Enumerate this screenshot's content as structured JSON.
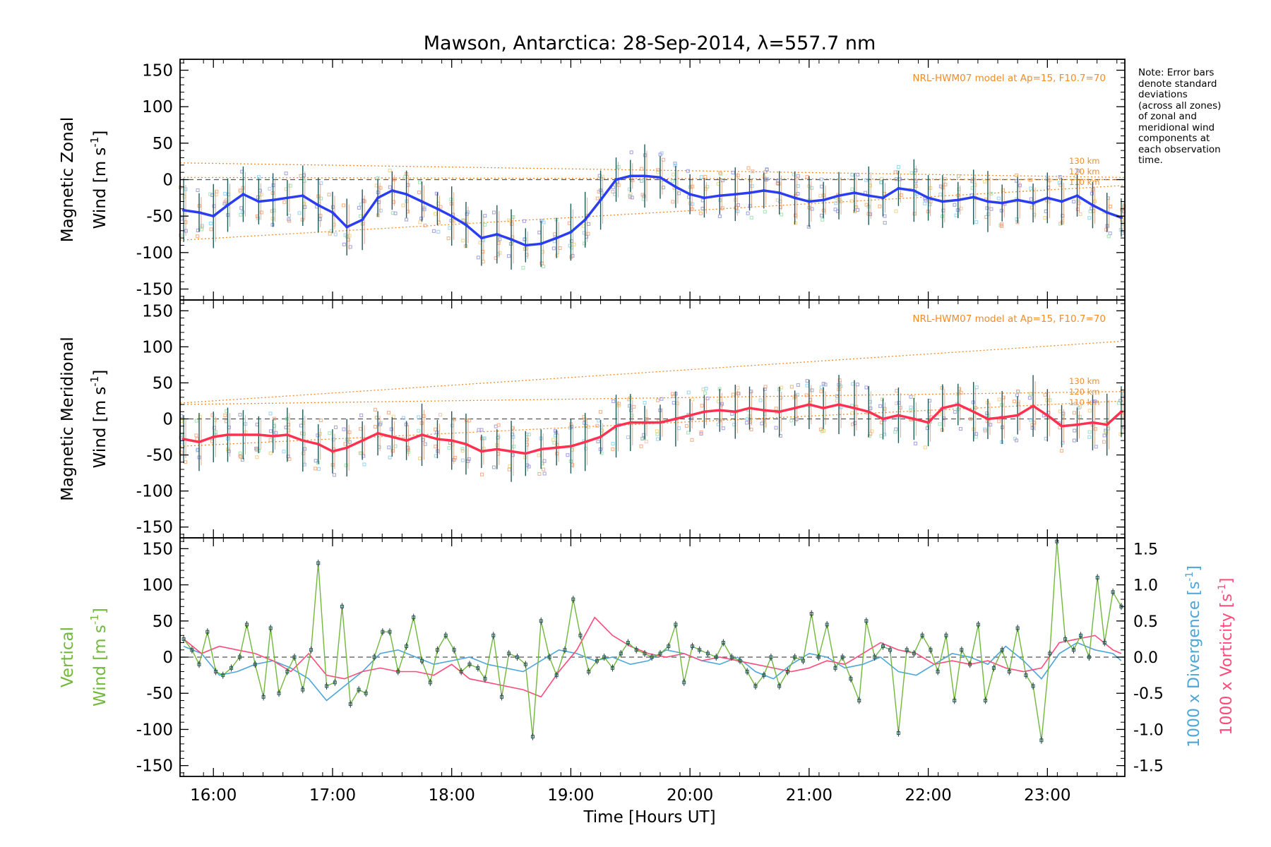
{
  "title": "Mawson, Antarctica: 28-Sep-2014, λ=557.7 nm",
  "note": "Note: Error bars\ndenote standard\ndeviations\n(across all zones)\nof zonal and\nmeridional wind\ncomponents at\neach observation\ntime.",
  "xlabel": "Time [Hours UT]",
  "x_ticks": [
    "16:00",
    "17:00",
    "18:00",
    "19:00",
    "20:00",
    "21:00",
    "22:00",
    "23:00"
  ],
  "colors": {
    "zonal": "#2b3df0",
    "meridional": "#ff3050",
    "vertical": "#72b83c",
    "divergence": "#4da6d8",
    "vorticity": "#ff4a7a",
    "model": "#f28c28",
    "zone_points": "#9999dd"
  },
  "chart_data": [
    {
      "type": "line",
      "name": "zonal",
      "ylabel_line1": "Magnetic Zonal",
      "ylabel_line2": "Wind [m s",
      "ylabel_sup": "-1",
      "ylabel_end": "]",
      "ylim": [
        -165,
        165
      ],
      "yticks": [
        -150,
        -100,
        -50,
        0,
        50,
        100,
        150
      ],
      "xlim": [
        15.72,
        23.65
      ],
      "model_label": "NRL-HWM07 model at Ap=15, F10.7=70",
      "model_levels": [
        "130 km",
        "120 km",
        "110 km"
      ],
      "model_lines": [
        {
          "name": "130 km",
          "start": 23,
          "end": 3
        },
        {
          "name": "120 km",
          "start": 3,
          "end": 0
        },
        {
          "name": "110 km",
          "start": -83,
          "end": -8
        }
      ],
      "x": [
        15.75,
        15.88,
        16.0,
        16.12,
        16.25,
        16.38,
        16.5,
        16.62,
        16.75,
        16.88,
        17.0,
        17.12,
        17.25,
        17.38,
        17.5,
        17.62,
        17.75,
        17.88,
        18.0,
        18.12,
        18.25,
        18.38,
        18.5,
        18.62,
        18.75,
        18.88,
        19.0,
        19.12,
        19.25,
        19.38,
        19.5,
        19.62,
        19.75,
        19.88,
        20.0,
        20.12,
        20.25,
        20.38,
        20.5,
        20.62,
        20.75,
        20.88,
        21.0,
        21.12,
        21.25,
        21.38,
        21.5,
        21.62,
        21.75,
        21.88,
        22.0,
        22.12,
        22.25,
        22.38,
        22.5,
        22.62,
        22.75,
        22.88,
        23.0,
        23.12,
        23.25,
        23.38,
        23.5,
        23.62
      ],
      "values": [
        -42,
        -45,
        -50,
        -35,
        -20,
        -30,
        -28,
        -25,
        -22,
        -35,
        -45,
        -65,
        -55,
        -25,
        -15,
        -20,
        -30,
        -40,
        -50,
        -62,
        -80,
        -75,
        -82,
        -90,
        -88,
        -80,
        -72,
        -55,
        -28,
        0,
        5,
        5,
        3,
        -10,
        -20,
        -25,
        -22,
        -20,
        -18,
        -15,
        -18,
        -25,
        -30,
        -28,
        -22,
        -18,
        -22,
        -25,
        -12,
        -15,
        -25,
        -30,
        -28,
        -24,
        -30,
        -32,
        -28,
        -32,
        -25,
        -30,
        -22,
        -35,
        -45,
        -52
      ]
    },
    {
      "type": "line",
      "name": "meridional",
      "ylabel_line1": "Magnetic Meridional",
      "ylabel_line2": "Wind [m s",
      "ylabel_sup": "-1",
      "ylabel_end": "]",
      "ylim": [
        -165,
        165
      ],
      "yticks": [
        -150,
        -100,
        -50,
        0,
        50,
        100,
        150
      ],
      "xlim": [
        15.72,
        23.65
      ],
      "model_label": "NRL-HWM07 model at Ap=15, F10.7=70",
      "model_levels": [
        "130 km",
        "120 km",
        "110 km"
      ],
      "model_lines": [
        {
          "name": "130 km",
          "start": 22,
          "end": 108
        },
        {
          "name": "120 km",
          "start": 20,
          "end": 38
        },
        {
          "name": "110 km",
          "start": -38,
          "end": 25
        }
      ],
      "x": [
        15.75,
        15.88,
        16.0,
        16.12,
        16.25,
        16.38,
        16.5,
        16.62,
        16.75,
        16.88,
        17.0,
        17.12,
        17.25,
        17.38,
        17.5,
        17.62,
        17.75,
        17.88,
        18.0,
        18.12,
        18.25,
        18.38,
        18.5,
        18.62,
        18.75,
        18.88,
        19.0,
        19.12,
        19.25,
        19.38,
        19.5,
        19.62,
        19.75,
        19.88,
        20.0,
        20.12,
        20.25,
        20.38,
        20.5,
        20.62,
        20.75,
        20.88,
        21.0,
        21.12,
        21.25,
        21.38,
        21.5,
        21.62,
        21.75,
        21.88,
        22.0,
        22.12,
        22.25,
        22.38,
        22.5,
        22.62,
        22.75,
        22.88,
        23.0,
        23.12,
        23.25,
        23.38,
        23.5,
        23.62
      ],
      "values": [
        -28,
        -32,
        -25,
        -22,
        -22,
        -22,
        -24,
        -22,
        -30,
        -35,
        -45,
        -40,
        -30,
        -20,
        -25,
        -30,
        -22,
        -28,
        -30,
        -35,
        -45,
        -42,
        -45,
        -48,
        -42,
        -40,
        -38,
        -32,
        -25,
        -10,
        -5,
        -5,
        -5,
        0,
        5,
        10,
        12,
        10,
        15,
        12,
        10,
        15,
        20,
        15,
        20,
        15,
        10,
        0,
        5,
        0,
        -5,
        15,
        20,
        10,
        0,
        2,
        5,
        18,
        5,
        -10,
        -8,
        -5,
        -8,
        10
      ]
    },
    {
      "type": "line",
      "name": "vertical",
      "ylabel_line1": "Vertical",
      "ylabel_line2": "Wind [m s",
      "ylabel_sup": "-1",
      "ylabel_end": "]",
      "ylim": [
        -165,
        165
      ],
      "yticks": [
        -150,
        -100,
        -50,
        0,
        50,
        100,
        150
      ],
      "xlim": [
        15.72,
        23.65
      ],
      "right_axis": {
        "ylim": [
          -1.65,
          1.65
        ],
        "yticks": [
          -1.5,
          -1.0,
          -0.5,
          0.0,
          0.5,
          1.0,
          1.5
        ],
        "label_divergence": "1000 x Divergence [s",
        "label_vorticity": "1000 x Vorticity [s",
        "label_sup": "-1",
        "label_end": "]"
      },
      "x": [
        15.75,
        15.82,
        15.88,
        15.95,
        16.02,
        16.08,
        16.15,
        16.22,
        16.28,
        16.35,
        16.42,
        16.48,
        16.55,
        16.62,
        16.68,
        16.75,
        16.82,
        16.88,
        16.95,
        17.02,
        17.08,
        17.15,
        17.22,
        17.28,
        17.35,
        17.42,
        17.48,
        17.55,
        17.62,
        17.68,
        17.75,
        17.82,
        17.88,
        17.95,
        18.02,
        18.08,
        18.15,
        18.22,
        18.28,
        18.35,
        18.42,
        18.48,
        18.55,
        18.62,
        18.68,
        18.75,
        18.82,
        18.88,
        18.95,
        19.02,
        19.08,
        19.15,
        19.22,
        19.28,
        19.35,
        19.42,
        19.48,
        19.55,
        19.62,
        19.68,
        19.75,
        19.82,
        19.88,
        19.95,
        20.02,
        20.08,
        20.15,
        20.22,
        20.28,
        20.35,
        20.42,
        20.48,
        20.55,
        20.62,
        20.68,
        20.75,
        20.82,
        20.88,
        20.95,
        21.02,
        21.08,
        21.15,
        21.22,
        21.28,
        21.35,
        21.42,
        21.48,
        21.55,
        21.62,
        21.68,
        21.75,
        21.82,
        21.88,
        21.95,
        22.02,
        22.08,
        22.15,
        22.22,
        22.28,
        22.35,
        22.42,
        22.48,
        22.55,
        22.62,
        22.68,
        22.75,
        22.82,
        22.88,
        22.95,
        23.02,
        23.08,
        23.15,
        23.22,
        23.28,
        23.35,
        23.42,
        23.48,
        23.55,
        23.62
      ],
      "values": [
        25,
        10,
        -10,
        35,
        -20,
        -25,
        -15,
        0,
        45,
        -10,
        -55,
        40,
        -50,
        -20,
        0,
        -45,
        10,
        130,
        -40,
        -35,
        70,
        -65,
        -45,
        -50,
        0,
        35,
        35,
        -20,
        15,
        55,
        -5,
        -35,
        10,
        30,
        10,
        -20,
        -10,
        -15,
        -30,
        30,
        -55,
        5,
        0,
        -10,
        -110,
        50,
        0,
        -25,
        10,
        80,
        30,
        -20,
        -5,
        0,
        -15,
        5,
        20,
        10,
        5,
        0,
        5,
        15,
        45,
        -35,
        15,
        10,
        5,
        0,
        20,
        0,
        -5,
        -20,
        -40,
        -25,
        0,
        -40,
        -20,
        0,
        -5,
        60,
        0,
        45,
        -15,
        0,
        -30,
        -60,
        50,
        0,
        15,
        10,
        -105,
        10,
        5,
        30,
        10,
        -20,
        30,
        -60,
        10,
        -10,
        45,
        -60,
        -15,
        10,
        -20,
        40,
        -25,
        -40,
        -115,
        5,
        160,
        25,
        10,
        30,
        0,
        110,
        20,
        90,
        70
      ]
    }
  ],
  "divergence": {
    "x": [
      15.75,
      15.9,
      16.05,
      16.2,
      16.35,
      16.5,
      16.65,
      16.8,
      16.95,
      17.1,
      17.25,
      17.4,
      17.55,
      17.7,
      17.85,
      18.0,
      18.15,
      18.3,
      18.45,
      18.6,
      18.75,
      18.9,
      19.05,
      19.2,
      19.35,
      19.5,
      19.65,
      19.8,
      19.95,
      20.1,
      20.25,
      20.4,
      20.55,
      20.7,
      20.85,
      21.0,
      21.15,
      21.3,
      21.45,
      21.6,
      21.75,
      21.9,
      22.05,
      22.2,
      22.35,
      22.5,
      22.65,
      22.8,
      22.95,
      23.1,
      23.25,
      23.4,
      23.55,
      23.62
    ],
    "values": [
      0.15,
      0.05,
      -0.25,
      -0.2,
      -0.1,
      -0.05,
      -0.15,
      -0.3,
      -0.6,
      -0.4,
      -0.2,
      0.05,
      0.1,
      0.0,
      -0.1,
      -0.05,
      0.0,
      -0.1,
      -0.15,
      -0.2,
      -0.05,
      0.1,
      0.05,
      -0.05,
      0.0,
      -0.1,
      -0.05,
      0.1,
      0.05,
      -0.05,
      -0.1,
      0.0,
      -0.2,
      -0.3,
      -0.1,
      0.05,
      0.0,
      -0.15,
      -0.1,
      0.0,
      -0.2,
      -0.25,
      -0.1,
      0.05,
      0.0,
      -0.1,
      0.15,
      -0.05,
      -0.3,
      0.05,
      0.2,
      0.1,
      0.05,
      -0.05
    ]
  },
  "vorticity": {
    "x": [
      15.75,
      15.9,
      16.05,
      16.2,
      16.35,
      16.5,
      16.65,
      16.8,
      16.95,
      17.1,
      17.25,
      17.4,
      17.55,
      17.7,
      17.85,
      18.0,
      18.15,
      18.3,
      18.45,
      18.6,
      18.75,
      18.9,
      19.05,
      19.2,
      19.35,
      19.5,
      19.65,
      19.8,
      19.95,
      20.1,
      20.25,
      20.4,
      20.55,
      20.7,
      20.85,
      21.0,
      21.15,
      21.3,
      21.45,
      21.6,
      21.75,
      21.9,
      22.05,
      22.2,
      22.35,
      22.5,
      22.65,
      22.8,
      22.95,
      23.1,
      23.25,
      23.4,
      23.55,
      23.62
    ],
    "values": [
      0.25,
      0.05,
      0.15,
      0.1,
      0.05,
      -0.05,
      -0.2,
      0.05,
      -0.25,
      -0.3,
      -0.2,
      -0.15,
      -0.2,
      -0.2,
      -0.25,
      -0.1,
      -0.3,
      -0.35,
      -0.4,
      -0.45,
      -0.55,
      -0.2,
      0.1,
      0.55,
      0.3,
      0.15,
      0.05,
      0.0,
      0.05,
      -0.05,
      0.0,
      -0.05,
      -0.1,
      -0.15,
      -0.2,
      -0.15,
      -0.05,
      -0.1,
      0.05,
      0.2,
      0.1,
      0.05,
      -0.1,
      -0.05,
      -0.1,
      -0.05,
      -0.15,
      -0.2,
      -0.15,
      0.2,
      0.25,
      0.3,
      0.1,
      0.05
    ]
  }
}
